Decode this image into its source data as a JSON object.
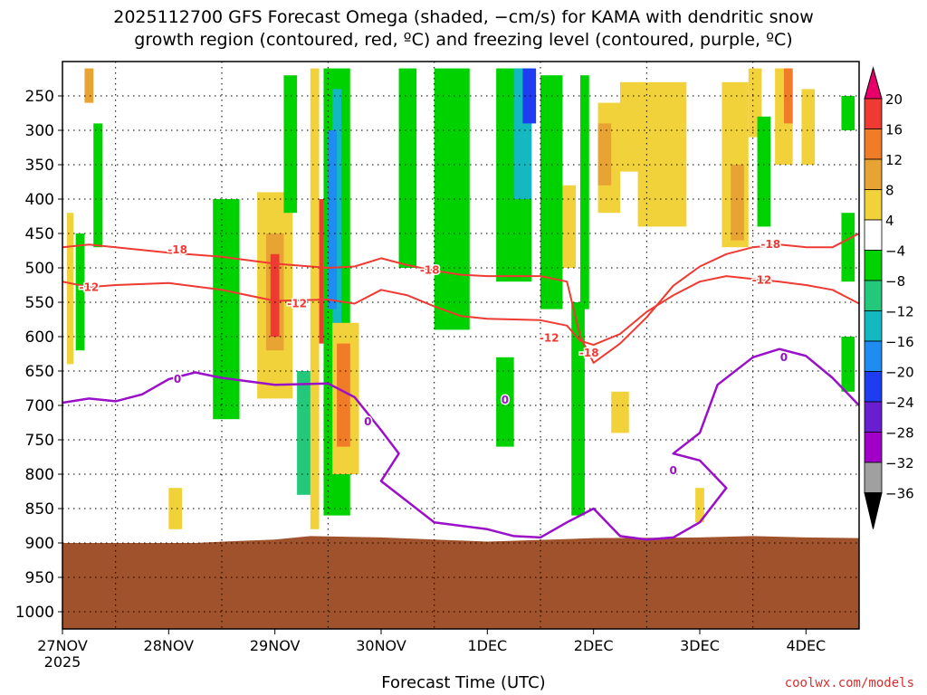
{
  "title_line1": "2025112700 GFS Forecast Omega (shaded, −cm/s) for KAMA with dendritic snow",
  "title_line2": "growth region (contoured, red, ºC) and freezing level (contoured, purple, ºC)",
  "x_title": "Forecast Time (UTC)",
  "credit": "coolwx.com/models",
  "chart_data": {
    "type": "heatmap",
    "title": "2025112700 GFS Forecast Omega (shaded, −cm/s) for KAMA with dendritic snow growth region (contoured, red, ºC) and freezing level (contoured, purple, ºC)",
    "xlabel": "Forecast Time (UTC)",
    "ylabel": "Pressure (hPa)",
    "x_ticks": [
      {
        "label": "27NOV",
        "sub": "2025",
        "hour": 0
      },
      {
        "label": "28NOV",
        "hour": 24
      },
      {
        "label": "29NOV",
        "hour": 48
      },
      {
        "label": "30NOV",
        "hour": 72
      },
      {
        "label": "1DEC",
        "hour": 96
      },
      {
        "label": "2DEC",
        "hour": 120
      },
      {
        "label": "3DEC",
        "hour": 144
      },
      {
        "label": "4DEC",
        "hour": 168
      }
    ],
    "xlim": [
      0,
      180
    ],
    "y_ticks": [
      250,
      300,
      350,
      400,
      450,
      500,
      550,
      600,
      650,
      700,
      750,
      800,
      850,
      900,
      950,
      1000
    ],
    "ylim": [
      200,
      1025
    ],
    "colorbar": {
      "labels": [
        "20",
        "16",
        "12",
        "8",
        "4",
        "−4",
        "−8",
        "−12",
        "−16",
        "−20",
        "−24",
        "−28",
        "−32",
        "−36"
      ],
      "bins": [
        {
          "color": "#e8006a",
          "range": [
            20,
            99
          ]
        },
        {
          "color": "#ee3a32",
          "range": [
            16,
            20
          ]
        },
        {
          "color": "#f07c28",
          "range": [
            12,
            16
          ]
        },
        {
          "color": "#e8a432",
          "range": [
            8,
            12
          ]
        },
        {
          "color": "#f2d23a",
          "range": [
            4,
            8
          ]
        },
        {
          "color": "#ffffff",
          "range": [
            -4,
            4
          ]
        },
        {
          "color": "#00d200",
          "range": [
            -8,
            -4
          ]
        },
        {
          "color": "#24c87a",
          "range": [
            -12,
            -8
          ]
        },
        {
          "color": "#14b8c0",
          "range": [
            -16,
            -12
          ]
        },
        {
          "color": "#1e8cf0",
          "range": [
            -20,
            -16
          ]
        },
        {
          "color": "#1e3cf0",
          "range": [
            -24,
            -20
          ]
        },
        {
          "color": "#6a1ed2",
          "range": [
            -28,
            -24
          ]
        },
        {
          "color": "#a000c8",
          "range": [
            -32,
            -28
          ]
        },
        {
          "color": "#a0a0a0",
          "range": [
            -36,
            -32
          ]
        },
        {
          "color": "#000000",
          "range": [
            -99,
            -36
          ]
        }
      ]
    },
    "terrain_color": "#a0522d",
    "contour_labels": {
      "snow_red": [
        "-18",
        "-12"
      ],
      "freezing_purple": [
        "0"
      ]
    },
    "contour_minus18": [
      [
        0,
        470
      ],
      [
        6,
        466
      ],
      [
        12,
        470
      ],
      [
        24,
        478
      ],
      [
        36,
        484
      ],
      [
        48,
        494
      ],
      [
        60,
        500
      ],
      [
        66,
        498
      ],
      [
        72,
        486
      ],
      [
        78,
        496
      ],
      [
        84,
        504
      ],
      [
        90,
        510
      ],
      [
        96,
        512
      ],
      [
        108,
        512
      ],
      [
        114,
        520
      ],
      [
        117,
        600
      ],
      [
        120,
        638
      ],
      [
        126,
        610
      ],
      [
        132,
        572
      ],
      [
        138,
        526
      ],
      [
        144,
        498
      ],
      [
        150,
        480
      ],
      [
        156,
        470
      ],
      [
        162,
        466
      ],
      [
        168,
        470
      ],
      [
        174,
        470
      ],
      [
        180,
        450
      ]
    ],
    "contour_minus12": [
      [
        0,
        520
      ],
      [
        6,
        528
      ],
      [
        12,
        525
      ],
      [
        24,
        522
      ],
      [
        36,
        532
      ],
      [
        48,
        548
      ],
      [
        60,
        546
      ],
      [
        66,
        552
      ],
      [
        72,
        532
      ],
      [
        78,
        540
      ],
      [
        84,
        556
      ],
      [
        90,
        570
      ],
      [
        96,
        574
      ],
      [
        108,
        576
      ],
      [
        114,
        584
      ],
      [
        117,
        606
      ],
      [
        120,
        612
      ],
      [
        126,
        596
      ],
      [
        132,
        564
      ],
      [
        138,
        540
      ],
      [
        144,
        520
      ],
      [
        150,
        512
      ],
      [
        156,
        516
      ],
      [
        162,
        520
      ],
      [
        168,
        525
      ],
      [
        174,
        532
      ],
      [
        180,
        552
      ]
    ],
    "contour_zero": [
      [
        0,
        696
      ],
      [
        6,
        690
      ],
      [
        12,
        694
      ],
      [
        18,
        684
      ],
      [
        24,
        662
      ],
      [
        30,
        652
      ],
      [
        36,
        660
      ],
      [
        48,
        670
      ],
      [
        60,
        668
      ],
      [
        66,
        688
      ],
      [
        72,
        736
      ],
      [
        76,
        770
      ],
      [
        72,
        810
      ],
      [
        78,
        840
      ],
      [
        84,
        870
      ],
      [
        96,
        880
      ],
      [
        102,
        890
      ],
      [
        108,
        892
      ],
      [
        114,
        870
      ],
      [
        120,
        850
      ],
      [
        126,
        890
      ],
      [
        132,
        895
      ],
      [
        138,
        892
      ],
      [
        144,
        870
      ],
      [
        150,
        820
      ],
      [
        144,
        780
      ],
      [
        138,
        770
      ],
      [
        144,
        740
      ],
      [
        148,
        670
      ],
      [
        156,
        630
      ],
      [
        162,
        618
      ],
      [
        168,
        628
      ],
      [
        174,
        660
      ],
      [
        180,
        700
      ]
    ],
    "omega_cells": [
      {
        "t0": 1,
        "t1": 2.5,
        "p0": 420,
        "p1": 640,
        "v": 6
      },
      {
        "t0": 5,
        "t1": 7,
        "p0": 210,
        "p1": 260,
        "v": 10
      },
      {
        "t0": 7,
        "t1": 9,
        "p0": 290,
        "p1": 470,
        "v": -6
      },
      {
        "t0": 3,
        "t1": 5,
        "p0": 450,
        "p1": 620,
        "v": -6
      },
      {
        "t0": 24,
        "t1": 27,
        "p0": 820,
        "p1": 880,
        "v": 6
      },
      {
        "t0": 34,
        "t1": 40,
        "p0": 400,
        "p1": 720,
        "v": -6
      },
      {
        "t0": 44,
        "t1": 52,
        "p0": 390,
        "p1": 690,
        "v": 6
      },
      {
        "t0": 46,
        "t1": 50,
        "p0": 450,
        "p1": 620,
        "v": 10
      },
      {
        "t0": 47,
        "t1": 49,
        "p0": 480,
        "p1": 600,
        "v": 18
      },
      {
        "t0": 50,
        "t1": 53,
        "p0": 220,
        "p1": 420,
        "v": -6
      },
      {
        "t0": 53,
        "t1": 57,
        "p0": 650,
        "p1": 830,
        "v": -10
      },
      {
        "t0": 56,
        "t1": 58,
        "p0": 210,
        "p1": 880,
        "v": 6
      },
      {
        "t0": 58,
        "t1": 59,
        "p0": 400,
        "p1": 610,
        "v": 18
      },
      {
        "t0": 59,
        "t1": 65,
        "p0": 210,
        "p1": 860,
        "v": -6
      },
      {
        "t0": 61,
        "t1": 63,
        "p0": 240,
        "p1": 640,
        "v": -14
      },
      {
        "t0": 60,
        "t1": 62,
        "p0": 300,
        "p1": 560,
        "v": -18
      },
      {
        "t0": 61,
        "t1": 67,
        "p0": 580,
        "p1": 800,
        "v": 6
      },
      {
        "t0": 62,
        "t1": 65,
        "p0": 610,
        "p1": 760,
        "v": 14
      },
      {
        "t0": 76,
        "t1": 80,
        "p0": 210,
        "p1": 500,
        "v": -6
      },
      {
        "t0": 84,
        "t1": 92,
        "p0": 210,
        "p1": 590,
        "v": -6
      },
      {
        "t0": 98,
        "t1": 106,
        "p0": 210,
        "p1": 520,
        "v": -6
      },
      {
        "t0": 102,
        "t1": 106,
        "p0": 210,
        "p1": 400,
        "v": -14
      },
      {
        "t0": 104,
        "t1": 107,
        "p0": 210,
        "p1": 290,
        "v": -22
      },
      {
        "t0": 108,
        "t1": 113,
        "p0": 220,
        "p1": 560,
        "v": -6
      },
      {
        "t0": 98,
        "t1": 102,
        "p0": 630,
        "p1": 760,
        "v": -6
      },
      {
        "t0": 113,
        "t1": 116,
        "p0": 380,
        "p1": 500,
        "v": 6
      },
      {
        "t0": 115,
        "t1": 118,
        "p0": 550,
        "p1": 860,
        "v": -6
      },
      {
        "t0": 117,
        "t1": 119,
        "p0": 220,
        "p1": 560,
        "v": -6
      },
      {
        "t0": 121,
        "t1": 126,
        "p0": 260,
        "p1": 420,
        "v": 6
      },
      {
        "t0": 121,
        "t1": 124,
        "p0": 290,
        "p1": 380,
        "v": 10
      },
      {
        "t0": 126,
        "t1": 131,
        "p0": 230,
        "p1": 360,
        "v": 6
      },
      {
        "t0": 124,
        "t1": 128,
        "p0": 680,
        "p1": 740,
        "v": 6
      },
      {
        "t0": 130,
        "t1": 141,
        "p0": 230,
        "p1": 440,
        "v": 6
      },
      {
        "t0": 143,
        "t1": 145,
        "p0": 820,
        "p1": 870,
        "v": 6
      },
      {
        "t0": 149,
        "t1": 155,
        "p0": 230,
        "p1": 470,
        "v": 6
      },
      {
        "t0": 151,
        "t1": 154,
        "p0": 350,
        "p1": 460,
        "v": 10
      },
      {
        "t0": 155,
        "t1": 158,
        "p0": 210,
        "p1": 310,
        "v": 6
      },
      {
        "t0": 157,
        "t1": 160,
        "p0": 280,
        "p1": 440,
        "v": -6
      },
      {
        "t0": 161,
        "t1": 165,
        "p0": 210,
        "p1": 350,
        "v": 6
      },
      {
        "t0": 163,
        "t1": 165,
        "p0": 210,
        "p1": 290,
        "v": 14
      },
      {
        "t0": 167,
        "t1": 170,
        "p0": 240,
        "p1": 350,
        "v": 6
      },
      {
        "t0": 176,
        "t1": 179,
        "p0": 250,
        "p1": 300,
        "v": -6
      },
      {
        "t0": 176,
        "t1": 179,
        "p0": 420,
        "p1": 520,
        "v": -6
      },
      {
        "t0": 176,
        "t1": 179,
        "p0": 600,
        "p1": 680,
        "v": -6
      }
    ],
    "terrain_profile": [
      [
        0,
        900
      ],
      [
        30,
        900
      ],
      [
        40,
        897
      ],
      [
        48,
        895
      ],
      [
        56,
        890
      ],
      [
        72,
        892
      ],
      [
        96,
        898
      ],
      [
        120,
        893
      ],
      [
        144,
        892
      ],
      [
        156,
        890
      ],
      [
        168,
        892
      ],
      [
        180,
        893
      ]
    ]
  }
}
